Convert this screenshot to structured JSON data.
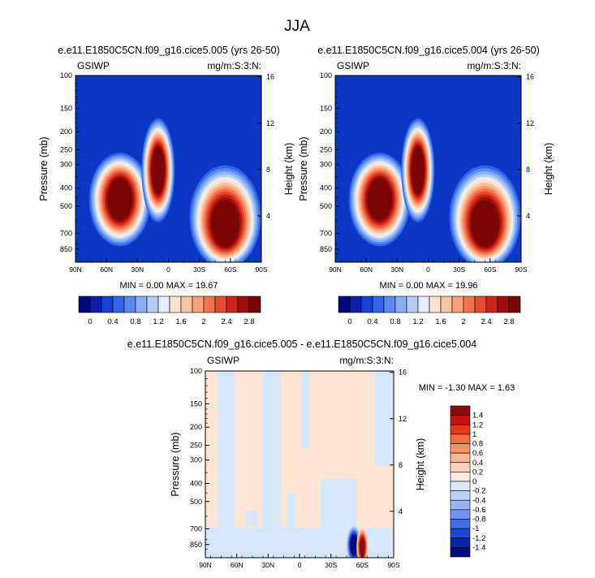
{
  "figure": {
    "title": "JJA"
  },
  "colors": {
    "plot_background": "#0b37c5",
    "diff_background": "#fde5d3",
    "diff_neutral_band": "#d6e6fb"
  },
  "chart_data": [
    {
      "type": "heatmap",
      "id": "panel-1",
      "title": "e.e11.E1850C5CN.f09_g16.cice5.005 (yrs 26-50)",
      "left_label": "GSIWP",
      "right_label": "mg/m:S:3:N:",
      "xlabel": "",
      "ylabel": "Pressure (mb)",
      "y2label": "Height (km)",
      "x_ticks": [
        "90N",
        "60N",
        "30N",
        "0",
        "30S",
        "60S",
        "90S"
      ],
      "y_ticks": [
        "100",
        "150",
        "200",
        "250",
        "300",
        "400",
        "500",
        "700",
        "850"
      ],
      "y_tick_values": [
        100,
        150,
        200,
        250,
        300,
        400,
        500,
        700,
        850
      ],
      "y2_ticks": [
        "16",
        "12",
        "8",
        "4"
      ],
      "y2_tick_values": [
        16,
        12,
        8,
        4
      ],
      "ylim": [
        100,
        1000
      ],
      "xlim": [
        90,
        -90
      ],
      "stats": "MIN =  0.00  MAX = 19.67",
      "min": 0.0,
      "max": 19.67,
      "features": [
        {
          "name": "northern-midlatitude storm track",
          "lat": 47,
          "p_top": 280,
          "p_bottom": 760,
          "peak": 2.8
        },
        {
          "name": "tropical deep convection",
          "lat": 10,
          "p_top": 185,
          "p_bottom": 560,
          "peak": 2.8
        },
        {
          "name": "southern-ocean storm track",
          "lat": -55,
          "p_top": 330,
          "p_bottom": 1000,
          "peak": 2.8
        }
      ]
    },
    {
      "type": "heatmap",
      "id": "panel-2",
      "title": "e.e11.E1850C5CN.f09_g16.cice5.004 (yrs 26-50)",
      "left_label": "GSIWP",
      "right_label": "mg/m:S:3:N:",
      "xlabel": "",
      "ylabel": "Pressure (mb)",
      "y2label": "Height (km)",
      "x_ticks": [
        "90N",
        "60N",
        "30N",
        "0",
        "30S",
        "60S",
        "90S"
      ],
      "y_ticks": [
        "100",
        "150",
        "200",
        "250",
        "300",
        "400",
        "500",
        "700",
        "850"
      ],
      "y_tick_values": [
        100,
        150,
        200,
        250,
        300,
        400,
        500,
        700,
        850
      ],
      "y2_ticks": [
        "16",
        "12",
        "8",
        "4"
      ],
      "y2_tick_values": [
        16,
        12,
        8,
        4
      ],
      "ylim": [
        100,
        1000
      ],
      "xlim": [
        90,
        -90
      ],
      "stats": "MIN =  0.00  MAX = 19.96",
      "min": 0.0,
      "max": 19.96,
      "features": [
        {
          "name": "northern-midlatitude storm track",
          "lat": 47,
          "p_top": 280,
          "p_bottom": 760,
          "peak": 2.8
        },
        {
          "name": "tropical deep convection",
          "lat": 10,
          "p_top": 185,
          "p_bottom": 560,
          "peak": 2.8
        },
        {
          "name": "southern-ocean storm track",
          "lat": -55,
          "p_top": 330,
          "p_bottom": 1000,
          "peak": 2.8
        }
      ]
    },
    {
      "type": "heatmap",
      "id": "panel-diff",
      "title": "e.e11.E1850C5CN.f09_g16.cice5.005 - e.e11.E1850C5CN.f09_g16.cice5.004",
      "left_label": "GSIWP",
      "right_label": "mg/m:S:3:N:",
      "xlabel": "",
      "ylabel": "Pressure (mb)",
      "y2label": "Height (km)",
      "x_ticks": [
        "90N",
        "60N",
        "30N",
        "0",
        "30S",
        "60S",
        "90S"
      ],
      "y_ticks": [
        "100",
        "150",
        "200",
        "250",
        "300",
        "400",
        "500",
        "700",
        "850"
      ],
      "y_tick_values": [
        100,
        150,
        200,
        250,
        300,
        400,
        500,
        700,
        850
      ],
      "y2_ticks": [
        "16",
        "12",
        "8",
        "4"
      ],
      "y2_tick_values": [
        16,
        12,
        8,
        4
      ],
      "ylim": [
        100,
        1000
      ],
      "xlim": [
        90,
        -90
      ],
      "stats": "MIN = -1.30  MAX =  1.63",
      "min": -1.3,
      "max": 1.63,
      "features": [
        {
          "name": "negative anomaly",
          "lat": -52,
          "p_top": 650,
          "p_bottom": 1000,
          "value": -1.3
        },
        {
          "name": "positive anomaly",
          "lat": -60,
          "p_top": 680,
          "p_bottom": 1000,
          "value": 1.63
        }
      ]
    }
  ],
  "colorbars": {
    "main": {
      "orientation": "horizontal",
      "labels": [
        "0",
        "0.4",
        "0.8",
        "1.2",
        "1.6",
        "2",
        "2.4",
        "2.8"
      ],
      "colors": [
        "#00077a",
        "#0b1fae",
        "#1440d8",
        "#2f66ea",
        "#5a8cf0",
        "#89aff3",
        "#b8cdf5",
        "#e6eefb",
        "#fde2cc",
        "#fbc3a2",
        "#f79f76",
        "#f27550",
        "#e64a2c",
        "#cc2714",
        "#a0100a",
        "#7a0606"
      ]
    },
    "diff": {
      "orientation": "vertical",
      "labels": [
        "1.4",
        "1.2",
        "1",
        "0.8",
        "0.6",
        "0.4",
        "0.2",
        "0",
        "-0.2",
        "-0.4",
        "-0.6",
        "-0.8",
        "-1",
        "-1.2",
        "-1.4"
      ],
      "colors": [
        "#8b0a0a",
        "#c0140e",
        "#e23a1c",
        "#f46a3e",
        "#f89468",
        "#fab692",
        "#fcd3b8",
        "#fdebdd",
        "#dde8fb",
        "#bcd1f7",
        "#97b5f2",
        "#6e93ec",
        "#4470e3",
        "#1e48cf",
        "#0a24a8",
        "#00087a"
      ]
    }
  }
}
